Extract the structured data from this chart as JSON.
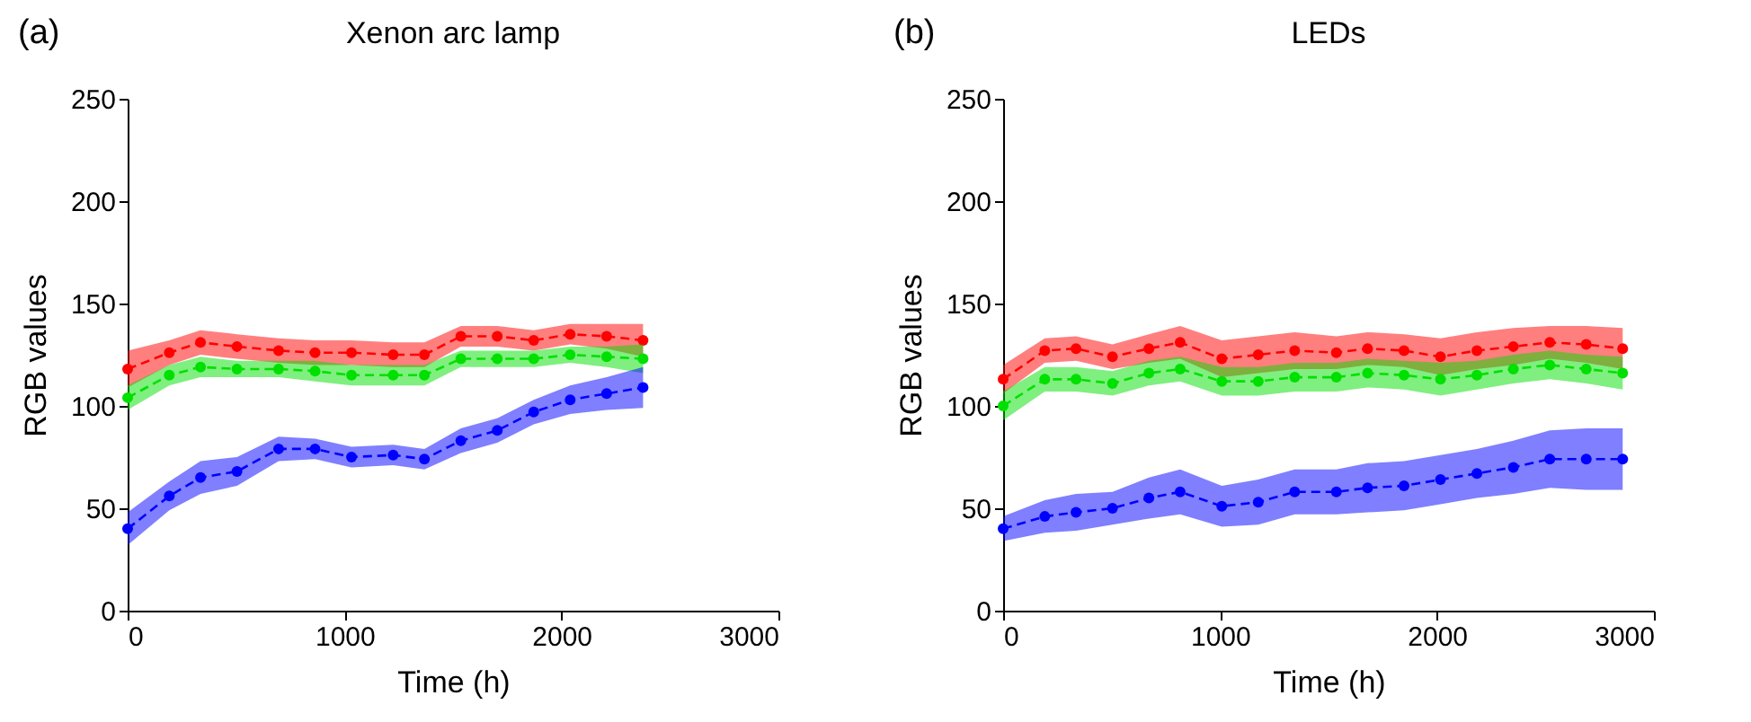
{
  "chart_data": [
    {
      "type": "line",
      "title": "Xenon arc lamp",
      "xlabel": "Time (h)",
      "ylabel": "RGB values",
      "annotations": [
        "(a)"
      ],
      "x": [
        0,
        192,
        336,
        504,
        696,
        864,
        1032,
        1224,
        1368,
        1536,
        1704,
        1872,
        2040,
        2208,
        2376
      ],
      "xlim": [
        0,
        3000
      ],
      "xticks": [
        0,
        1000,
        2000,
        3000
      ],
      "ylim": [
        0,
        250
      ],
      "yticks": [
        0,
        50,
        100,
        150,
        200,
        250
      ],
      "marker": "circle",
      "line_style": "dashed",
      "series": [
        {
          "color": "#ff0000",
          "values": [
            118,
            126,
            131,
            129,
            127,
            126,
            126,
            125,
            125,
            134,
            134,
            132,
            135,
            134,
            132
          ],
          "lower": [
            109,
            120,
            125,
            123,
            121,
            120,
            120,
            119,
            119,
            129,
            129,
            127,
            130,
            128,
            124
          ],
          "upper": [
            127,
            132,
            137,
            135,
            133,
            132,
            132,
            131,
            131,
            139,
            139,
            137,
            140,
            140,
            140
          ]
        },
        {
          "color": "#00e000",
          "values": [
            104,
            115,
            119,
            118,
            118,
            117,
            115,
            115,
            115,
            123,
            123,
            123,
            125,
            124,
            123
          ],
          "lower": [
            98,
            110,
            114,
            114,
            114,
            112,
            110,
            110,
            110,
            119,
            119,
            119,
            121,
            119,
            116
          ],
          "upper": [
            110,
            120,
            124,
            122,
            122,
            122,
            120,
            120,
            120,
            127,
            127,
            127,
            129,
            129,
            130
          ]
        },
        {
          "color": "#0000ff",
          "values": [
            40,
            56,
            65,
            68,
            79,
            79,
            75,
            76,
            74,
            83,
            88,
            97,
            103,
            106,
            109
          ],
          "lower": [
            32,
            49,
            57,
            61,
            73,
            74,
            70,
            71,
            69,
            77,
            82,
            91,
            96,
            98,
            99
          ],
          "upper": [
            48,
            63,
            73,
            75,
            85,
            84,
            80,
            81,
            79,
            89,
            94,
            103,
            110,
            114,
            119
          ]
        }
      ]
    },
    {
      "type": "line",
      "title": "LEDs",
      "xlabel": "Time (h)",
      "ylabel": "RGB values",
      "annotations": [
        "(b)"
      ],
      "x": [
        0,
        192,
        336,
        504,
        672,
        816,
        1008,
        1176,
        1344,
        1536,
        1680,
        1848,
        2016,
        2184,
        2352,
        2520,
        2688,
        2856
      ],
      "xlim": [
        0,
        3000
      ],
      "xticks": [
        0,
        1000,
        2000,
        3000
      ],
      "ylim": [
        0,
        250
      ],
      "yticks": [
        0,
        50,
        100,
        150,
        200,
        250
      ],
      "marker": "circle",
      "line_style": "dashed",
      "series": [
        {
          "color": "#ff0000",
          "values": [
            113,
            127,
            128,
            124,
            128,
            131,
            123,
            125,
            127,
            126,
            128,
            127,
            124,
            127,
            129,
            131,
            130,
            128
          ],
          "lower": [
            106,
            121,
            122,
            118,
            121,
            123,
            114,
            116,
            118,
            118,
            120,
            119,
            115,
            118,
            120,
            123,
            121,
            118
          ],
          "upper": [
            120,
            133,
            134,
            130,
            135,
            139,
            132,
            134,
            136,
            134,
            136,
            135,
            133,
            136,
            138,
            139,
            139,
            138
          ]
        },
        {
          "color": "#00e000",
          "values": [
            100,
            113,
            113,
            111,
            116,
            118,
            112,
            112,
            114,
            114,
            116,
            115,
            113,
            115,
            118,
            120,
            118,
            116
          ],
          "lower": [
            93,
            107,
            107,
            105,
            110,
            112,
            105,
            105,
            107,
            107,
            109,
            108,
            105,
            108,
            111,
            113,
            111,
            108
          ],
          "upper": [
            107,
            119,
            119,
            117,
            122,
            124,
            119,
            119,
            121,
            121,
            123,
            122,
            121,
            122,
            125,
            127,
            125,
            124
          ]
        },
        {
          "color": "#0000ff",
          "values": [
            40,
            46,
            48,
            50,
            55,
            58,
            51,
            53,
            58,
            58,
            60,
            61,
            64,
            67,
            70,
            74,
            74,
            74
          ],
          "lower": [
            34,
            38,
            39,
            42,
            45,
            47,
            41,
            42,
            47,
            47,
            48,
            49,
            52,
            55,
            57,
            60,
            59,
            59
          ],
          "upper": [
            46,
            54,
            57,
            58,
            65,
            69,
            61,
            64,
            69,
            69,
            72,
            73,
            76,
            79,
            83,
            88,
            89,
            89
          ]
        }
      ]
    }
  ]
}
